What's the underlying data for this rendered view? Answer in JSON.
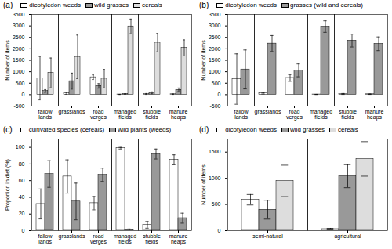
{
  "chart_data": [
    {
      "type": "bar",
      "title": "(a)",
      "y_label": "Number of items",
      "categories": [
        "fallow\nlands",
        "grasslands",
        "road\nverges",
        "managed\nfields",
        "stubble\nfields",
        "manure\nheaps"
      ],
      "series": [
        {
          "name": "dicotyledon weeds",
          "color": "#ffffff",
          "values": [
            720,
            60,
            760,
            10,
            30,
            20
          ],
          "errors": [
            950,
            40,
            100,
            5,
            20,
            10
          ]
        },
        {
          "name": "wild grasses",
          "color": "#999999",
          "values": [
            160,
            590,
            380,
            30,
            80,
            210
          ],
          "errors": [
            60,
            350,
            100,
            10,
            40,
            80
          ]
        },
        {
          "name": "cereals",
          "color": "#dddddd",
          "values": [
            950,
            1650,
            700,
            2980,
            2270,
            2040
          ],
          "errors": [
            650,
            950,
            400,
            320,
            400,
            350
          ]
        }
      ],
      "ylim": [
        -500,
        3500
      ],
      "yticks": [
        -500,
        0,
        500,
        1000,
        1500,
        2000,
        2500,
        3000,
        3500
      ],
      "legend": "upper left"
    },
    {
      "type": "bar",
      "title": "(b)",
      "y_label": "Number of items",
      "categories": [
        "fallow\nlands",
        "grasslands",
        "road\nverges",
        "managed\nfields",
        "stubble\nfields",
        "manure\nheaps"
      ],
      "series": [
        {
          "name": "dicotyledon weeds",
          "color": "#ffffff",
          "values": [
            680,
            60,
            730,
            10,
            30,
            20
          ],
          "errors": [
            1100,
            30,
            150,
            5,
            20,
            10
          ]
        },
        {
          "name": "grasses (wild and cereals)",
          "color": "#999999",
          "values": [
            1100,
            2230,
            1060,
            2970,
            2360,
            2220
          ],
          "errors": [
            850,
            350,
            280,
            250,
            280,
            300
          ]
        }
      ],
      "ylim": [
        -500,
        3500
      ],
      "yticks": [
        -500,
        0,
        500,
        1000,
        1500,
        2000,
        2500,
        3000,
        3500
      ],
      "legend": "upper left"
    },
    {
      "type": "bar",
      "title": "(c)",
      "y_label": "Proportion in diet (%)",
      "categories": [
        "fallow\nlands",
        "grasslands",
        "road\nverges",
        "managed\nfields",
        "stubble\nfields",
        "manure\nheaps"
      ],
      "series": [
        {
          "name": "cultivated species (cereals)",
          "color": "#ffffff",
          "values": [
            32,
            65,
            33,
            99,
            7,
            85
          ],
          "errors": [
            18,
            20,
            8,
            1,
            4,
            6
          ]
        },
        {
          "name": "wild plants (weeds)",
          "color": "#999999",
          "values": [
            68,
            35,
            67,
            1,
            92,
            15
          ],
          "errors": [
            16,
            22,
            8,
            1,
            6,
            6
          ]
        }
      ],
      "ylim": [
        0,
        110
      ],
      "yticks": [
        0,
        20,
        40,
        60,
        80,
        100
      ],
      "legend": "upper left"
    },
    {
      "type": "bar",
      "title": "(d)",
      "y_label": "Number of items",
      "categories": [
        "semi-natural",
        "agricultural"
      ],
      "series": [
        {
          "name": "dicotyledon weeds",
          "color": "#ffffff",
          "values": [
            590,
            30
          ],
          "errors": [
            100,
            15
          ]
        },
        {
          "name": "wild grasses",
          "color": "#999999",
          "values": [
            400,
            1040
          ],
          "errors": [
            180,
            220
          ]
        },
        {
          "name": "cereals",
          "color": "#dddddd",
          "values": [
            950,
            1370
          ],
          "errors": [
            300,
            330
          ]
        }
      ],
      "ylim": [
        0,
        1750
      ],
      "yticks": [
        0,
        500,
        1000,
        1500
      ],
      "legend": "upper left"
    }
  ]
}
